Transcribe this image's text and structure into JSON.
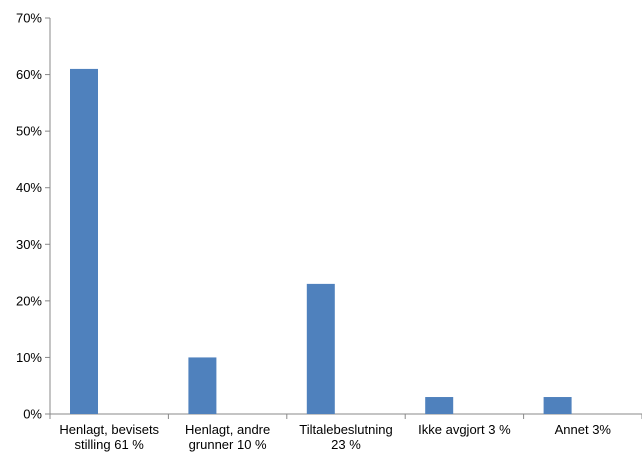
{
  "chart_data": {
    "type": "bar",
    "categories": [
      [
        "Henlagt, bevisets",
        "stilling 61 %"
      ],
      [
        "Henlagt, andre",
        "grunner 10 %"
      ],
      [
        "Tiltalebeslutning",
        "23 %"
      ],
      [
        "Ikke avgjort 3 %"
      ],
      [
        "Annet 3%"
      ]
    ],
    "values": [
      61,
      10,
      23,
      3,
      3
    ],
    "unit": "%",
    "ylim": [
      0,
      70
    ],
    "yticks": [
      0,
      10,
      20,
      30,
      40,
      50,
      60,
      70
    ],
    "ytick_labels": [
      "0%",
      "10%",
      "20%",
      "30%",
      "40%",
      "50%",
      "60%",
      "70%"
    ],
    "bar_position": "left-half-of-category",
    "grid": false,
    "legend": "none",
    "title": "",
    "xlabel": "",
    "ylabel": "",
    "colors": {
      "bar": "#4f81bd",
      "axis": "#888888",
      "text": "#000000"
    }
  }
}
